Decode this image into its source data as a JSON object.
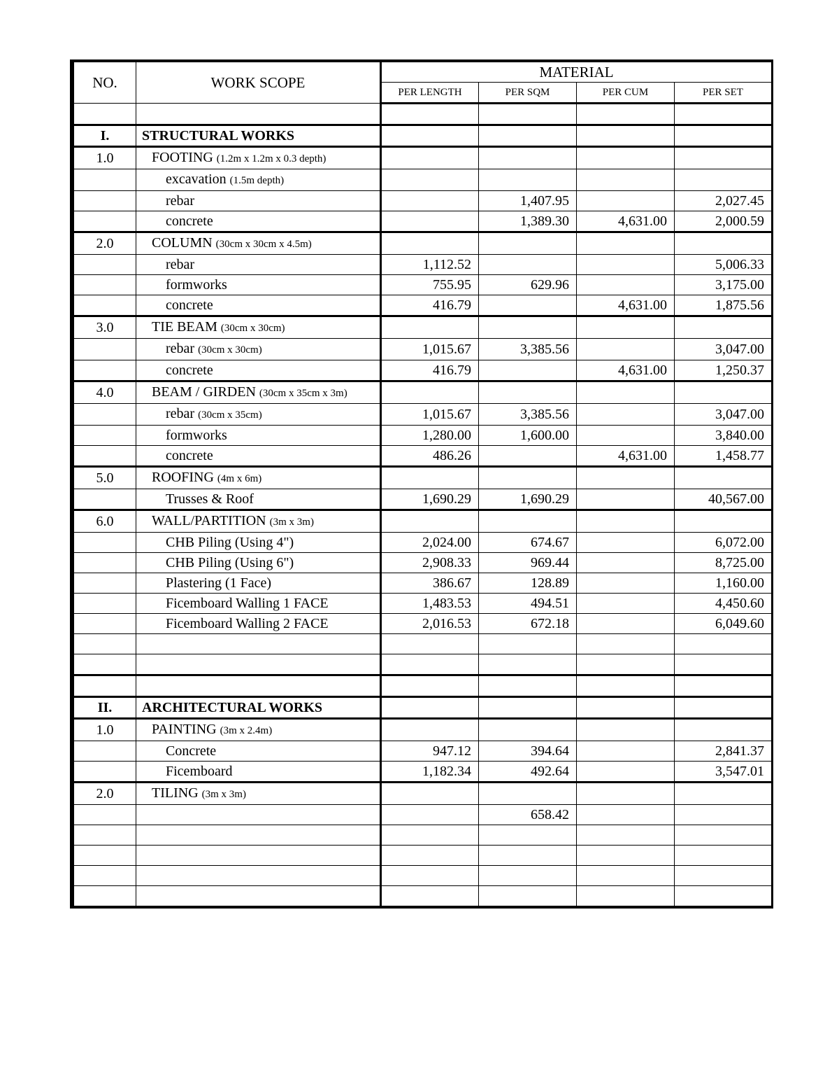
{
  "header": {
    "no": "NO.",
    "scope": "WORK SCOPE",
    "material": "MATERIAL",
    "per_length": "PER LENGTH",
    "per_sqm": "PER SQM",
    "per_cum": "PER CUM",
    "per_set": "PER SET"
  },
  "rows": [
    {
      "type": "blank"
    },
    {
      "type": "section",
      "no": "I.",
      "label": "STRUCTURAL WORKS"
    },
    {
      "type": "group",
      "no": "1.0",
      "label": "FOOTING ",
      "sub": "(1.2m x 1.2m x 0.3 depth)"
    },
    {
      "type": "item",
      "label": "excavation ",
      "sub": "(1.5m depth)"
    },
    {
      "type": "item",
      "label": "rebar",
      "per_sqm": "1,407.95",
      "per_set": "2,027.45"
    },
    {
      "type": "item",
      "label": "concrete",
      "per_sqm": "1,389.30",
      "per_cum": "4,631.00",
      "per_set": "2,000.59",
      "sep": true
    },
    {
      "type": "group",
      "no": "2.0",
      "label": "COLUMN ",
      "sub": "(30cm x 30cm x 4.5m)"
    },
    {
      "type": "item",
      "label": "rebar",
      "per_length": "1,112.52",
      "per_set": "5,006.33"
    },
    {
      "type": "item",
      "label": "formworks",
      "per_length": "755.95",
      "per_sqm": "629.96",
      "per_set": "3,175.00"
    },
    {
      "type": "item",
      "label": "concrete",
      "per_length": "416.79",
      "per_cum": "4,631.00",
      "per_set": "1,875.56",
      "sep": true
    },
    {
      "type": "group",
      "no": "3.0",
      "label": "TIE BEAM ",
      "sub": "(30cm x 30cm)"
    },
    {
      "type": "item",
      "label": "rebar ",
      "sub": "(30cm x 30cm)",
      "per_length": "1,015.67",
      "per_sqm": "3,385.56",
      "per_set": "3,047.00"
    },
    {
      "type": "item",
      "label": "concrete",
      "per_length": "416.79",
      "per_cum": "4,631.00",
      "per_set": "1,250.37",
      "sep": true
    },
    {
      "type": "group",
      "no": "4.0",
      "label": "BEAM / GIRDEN ",
      "sub": "(30cm x 35cm x 3m)"
    },
    {
      "type": "item",
      "label": "rebar ",
      "sub": "(30cm x 35cm)",
      "per_length": "1,015.67",
      "per_sqm": "3,385.56",
      "per_set": "3,047.00"
    },
    {
      "type": "item",
      "label": "formworks",
      "per_length": "1,280.00",
      "per_sqm": "1,600.00",
      "per_set": "3,840.00"
    },
    {
      "type": "item",
      "label": "concrete",
      "per_length": "486.26",
      "per_cum": "4,631.00",
      "per_set": "1,458.77",
      "sep": true
    },
    {
      "type": "group",
      "no": "5.0",
      "label": "ROOFING ",
      "sub": "(4m x 6m)"
    },
    {
      "type": "item",
      "label": "Trusses & Roof",
      "per_length": "1,690.29",
      "per_sqm": "1,690.29",
      "per_set": "40,567.00",
      "sep": true
    },
    {
      "type": "group",
      "no": "6.0",
      "label": "WALL/PARTITION ",
      "sub": "(3m x 3m)"
    },
    {
      "type": "item",
      "label": "CHB Piling (Using 4\")",
      "per_length": "2,024.00",
      "per_sqm": "674.67",
      "per_set": "6,072.00"
    },
    {
      "type": "item",
      "label": "CHB Piling (Using 6\")",
      "per_length": "2,908.33",
      "per_sqm": "969.44",
      "per_set": "8,725.00"
    },
    {
      "type": "item",
      "label": "Plastering (1 Face)",
      "per_length": "386.67",
      "per_sqm": "128.89",
      "per_set": "1,160.00"
    },
    {
      "type": "item",
      "label": "Ficemboard Walling 1 FACE",
      "per_length": "1,483.53",
      "per_sqm": "494.51",
      "per_set": "4,450.60"
    },
    {
      "type": "item",
      "label": "Ficemboard Walling 2 FACE",
      "per_length": "2,016.53",
      "per_sqm": "672.18",
      "per_set": "6,049.60"
    },
    {
      "type": "blank"
    },
    {
      "type": "blank",
      "sep": true
    },
    {
      "type": "blank"
    },
    {
      "type": "section",
      "no": "II.",
      "label": "ARCHITECTURAL WORKS"
    },
    {
      "type": "group",
      "no": "1.0",
      "label": "PAINTING ",
      "sub": "(3m x 2.4m)"
    },
    {
      "type": "item",
      "label": "Concrete",
      "per_length": "947.12",
      "per_sqm": "394.64",
      "per_set": "2,841.37"
    },
    {
      "type": "item",
      "label": "Ficemboard",
      "per_length": "1,182.34",
      "per_sqm": "492.64",
      "per_set": "3,547.01",
      "sep": true
    },
    {
      "type": "group",
      "no": "2.0",
      "label": "TILING ",
      "sub": "(3m x 3m)"
    },
    {
      "type": "item",
      "label": "",
      "per_sqm": "658.42"
    },
    {
      "type": "blank"
    },
    {
      "type": "blank"
    },
    {
      "type": "blank"
    },
    {
      "type": "blank"
    }
  ]
}
